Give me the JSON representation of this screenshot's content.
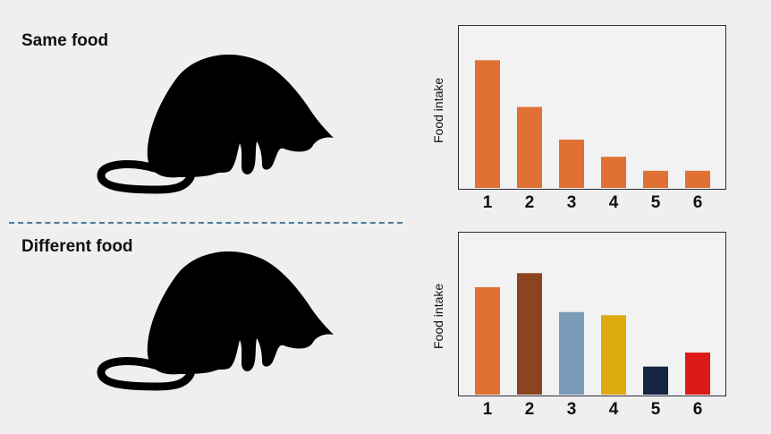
{
  "panels": {
    "top": {
      "title": "Same food"
    },
    "bottom": {
      "title": "Different food"
    }
  },
  "icons": {
    "cat": "cat-eating-silhouette-icon"
  },
  "chart_data": [
    {
      "type": "bar",
      "categories": [
        "1",
        "2",
        "3",
        "4",
        "5",
        "6"
      ],
      "values": [
        8.2,
        5.2,
        3.1,
        2.0,
        1.1,
        1.1
      ],
      "ylabel": "Food intake",
      "xlabel": "",
      "ylim": [
        0,
        10
      ],
      "colors": [
        "#e07033",
        "#e07033",
        "#e07033",
        "#e07033",
        "#e07033",
        "#e07033"
      ]
    },
    {
      "type": "bar",
      "categories": [
        "1",
        "2",
        "3",
        "4",
        "5",
        "6"
      ],
      "values": [
        6.9,
        7.8,
        5.3,
        5.1,
        1.8,
        2.7
      ],
      "ylabel": "Food intake",
      "xlabel": "",
      "ylim": [
        0,
        10
      ],
      "colors": [
        "#e07033",
        "#8a4520",
        "#7a9cb8",
        "#ddaa10",
        "#15253f",
        "#dd1a18"
      ]
    }
  ]
}
